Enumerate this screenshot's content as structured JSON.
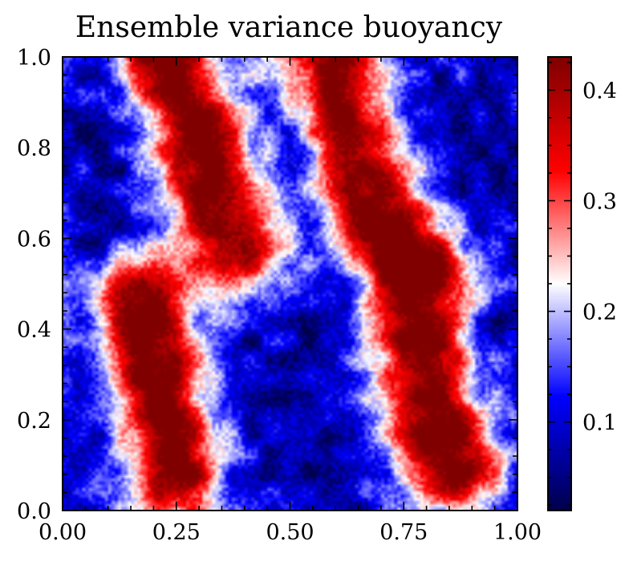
{
  "chart_data": {
    "type": "heatmap",
    "title": "Ensemble variance buoyancy",
    "xlabel": "",
    "ylabel": "",
    "xlim": [
      0.0,
      1.0
    ],
    "ylim": [
      0.0,
      1.0
    ],
    "x_ticks": [
      "0.00",
      "0.25",
      "0.50",
      "0.75",
      "1.00"
    ],
    "y_ticks": [
      "0.0",
      "0.2",
      "0.4",
      "0.6",
      "0.8",
      "1.0"
    ],
    "colormap": "seismic",
    "colorbar": {
      "vmin": 0.02,
      "vmax": 0.43,
      "ticks": [
        0.1,
        0.2,
        0.3,
        0.4
      ],
      "tick_labels": [
        "0.1",
        "0.2",
        "0.3",
        "0.4"
      ]
    },
    "high_variance_regions": [
      {
        "label": "upper-left band",
        "x_range": [
          0.18,
          0.45
        ],
        "y_range": [
          0.58,
          1.0
        ],
        "peak": 0.4
      },
      {
        "label": "upper-right band",
        "x_range": [
          0.52,
          0.72
        ],
        "y_range": [
          0.65,
          1.0
        ],
        "peak": 0.4
      },
      {
        "label": "lower-left band",
        "x_range": [
          0.1,
          0.3
        ],
        "y_range": [
          0.05,
          0.48
        ],
        "peak": 0.42
      },
      {
        "label": "lower-right band",
        "x_range": [
          0.68,
          0.92
        ],
        "y_range": [
          0.08,
          0.55
        ],
        "peak": 0.42
      }
    ],
    "background_level": 0.06
  }
}
